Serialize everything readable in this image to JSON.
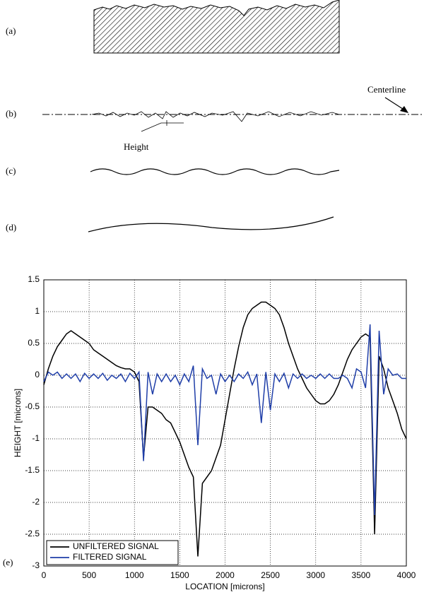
{
  "diagram": {
    "labels": [
      "(a)",
      "(b)",
      "(c)",
      "(d)",
      "(e)"
    ],
    "centerline": "Centerline",
    "height": "Height"
  },
  "chart_data": {
    "type": "line",
    "xlabel": "LOCATION [microns]",
    "ylabel": "HEIGHT [microns]",
    "xlim": [
      0,
      4000
    ],
    "xticks": [
      0,
      500,
      1000,
      1500,
      2000,
      2500,
      3000,
      3500,
      4000
    ],
    "ylim": [
      -3,
      1.5
    ],
    "yticks": [
      -3,
      -2.5,
      -2,
      -1.5,
      -1,
      -0.5,
      0,
      0.5,
      1,
      1.5
    ],
    "grid": true,
    "legend": "lower left",
    "x": [
      0,
      50,
      100,
      150,
      200,
      250,
      300,
      350,
      400,
      450,
      500,
      550,
      600,
      650,
      700,
      750,
      800,
      850,
      900,
      950,
      1000,
      1050,
      1100,
      1150,
      1200,
      1250,
      1300,
      1350,
      1400,
      1450,
      1500,
      1550,
      1600,
      1650,
      1700,
      1750,
      1800,
      1850,
      1900,
      1950,
      2000,
      2050,
      2100,
      2150,
      2200,
      2250,
      2300,
      2350,
      2400,
      2450,
      2500,
      2550,
      2600,
      2650,
      2700,
      2750,
      2800,
      2850,
      2900,
      2950,
      3000,
      3050,
      3100,
      3150,
      3200,
      3250,
      3300,
      3350,
      3400,
      3450,
      3500,
      3550,
      3600,
      3650,
      3700,
      3750,
      3800,
      3850,
      3900,
      3950,
      4000
    ],
    "series": [
      {
        "name": "UNFILTERED SIGNAL",
        "color": "#000000",
        "values": [
          -0.15,
          0.1,
          0.3,
          0.45,
          0.55,
          0.65,
          0.7,
          0.65,
          0.6,
          0.55,
          0.5,
          0.4,
          0.35,
          0.3,
          0.25,
          0.2,
          0.15,
          0.12,
          0.1,
          0.1,
          0.05,
          -0.1,
          -1.3,
          -0.5,
          -0.5,
          -0.55,
          -0.6,
          -0.7,
          -0.75,
          -0.9,
          -1.05,
          -1.25,
          -1.45,
          -1.6,
          -2.85,
          -1.7,
          -1.6,
          -1.5,
          -1.3,
          -1.1,
          -0.7,
          -0.3,
          0.1,
          0.45,
          0.75,
          0.95,
          1.05,
          1.1,
          1.15,
          1.15,
          1.1,
          1.05,
          0.95,
          0.75,
          0.5,
          0.3,
          0.1,
          -0.05,
          -0.2,
          -0.3,
          -0.4,
          -0.45,
          -0.45,
          -0.4,
          -0.3,
          -0.15,
          0.05,
          0.25,
          0.4,
          0.5,
          0.6,
          0.65,
          0.6,
          -2.5,
          0.3,
          0.1,
          -0.2,
          -0.4,
          -0.6,
          -0.85,
          -1.0
        ]
      },
      {
        "name": "FILTERED SIGNAL",
        "color": "#1f3ea8",
        "values": [
          -0.1,
          0.05,
          0.0,
          0.05,
          -0.05,
          0.02,
          -0.05,
          0.02,
          -0.1,
          0.03,
          -0.05,
          0.02,
          -0.05,
          0.03,
          -0.08,
          0.0,
          -0.05,
          0.02,
          -0.1,
          0.03,
          -0.05,
          0.05,
          -1.35,
          0.05,
          -0.3,
          0.02,
          -0.1,
          0.02,
          -0.1,
          0.0,
          -0.15,
          0.02,
          -0.1,
          0.15,
          -1.1,
          0.1,
          -0.05,
          0.0,
          -0.3,
          0.02,
          -0.1,
          0.0,
          -0.1,
          0.02,
          -0.05,
          0.05,
          -0.15,
          0.02,
          -0.75,
          0.05,
          -0.55,
          0.02,
          -0.1,
          0.03,
          -0.2,
          0.02,
          -0.05,
          0.02,
          -0.05,
          0.0,
          -0.05,
          0.02,
          -0.05,
          0.02,
          -0.05,
          -0.05,
          0.0,
          -0.05,
          -0.2,
          0.1,
          0.05,
          -0.2,
          0.8,
          -2.2,
          0.7,
          -0.3,
          0.1,
          0.0,
          0.02,
          -0.05,
          -0.05
        ]
      }
    ]
  }
}
